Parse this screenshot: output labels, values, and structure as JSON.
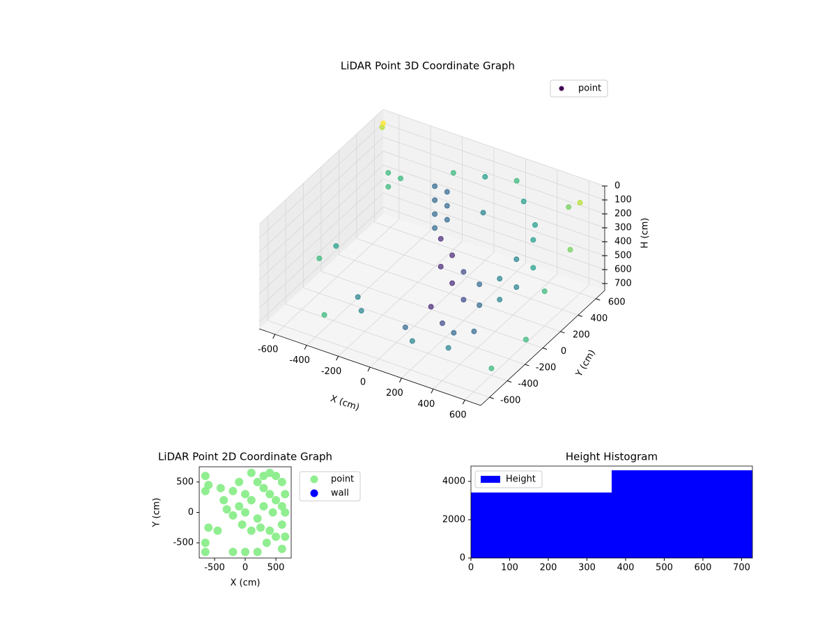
{
  "chart_data": [
    {
      "type": "scatter3d",
      "title": "LiDAR Point 3D Coordinate Graph",
      "xlabel": "X (cm)",
      "ylabel": "Y (cm)",
      "zlabel": "H (cm)",
      "xlim": [
        -700,
        700
      ],
      "ylim": [
        -700,
        700
      ],
      "zlim": [
        0,
        750
      ],
      "z_inverted": true,
      "xticks": [
        -600,
        -400,
        -200,
        0,
        200,
        400,
        600
      ],
      "yticks": [
        -600,
        -400,
        -200,
        0,
        200,
        400,
        600
      ],
      "zticks": [
        0,
        100,
        200,
        300,
        400,
        500,
        600,
        700
      ],
      "grid": true,
      "colormap": "viridis",
      "legend": "upper right",
      "series": [
        {
          "name": "point",
          "color": "#440154",
          "x": [
            -150,
            -150,
            -150,
            -150,
            -100,
            -100,
            -100,
            -500,
            -500,
            -450,
            0,
            100,
            200,
            300,
            400,
            450,
            500,
            0,
            100,
            200,
            300,
            400,
            450,
            500,
            50,
            150,
            250,
            350,
            0,
            100,
            300,
            -600,
            -550,
            -300,
            -250,
            -400,
            600,
            500,
            650,
            600,
            650,
            600,
            -650,
            -700,
            200,
            300,
            -200,
            100,
            0,
            400
          ],
          "y": [
            300,
            300,
            300,
            300,
            350,
            350,
            350,
            400,
            400,
            450,
            100,
            50,
            0,
            0,
            50,
            150,
            250,
            100,
            50,
            0,
            0,
            50,
            150,
            250,
            -100,
            -150,
            -200,
            -150,
            -300,
            -400,
            -350,
            -200,
            -100,
            -300,
            -350,
            -500,
            600,
            650,
            400,
            200,
            -100,
            -400,
            600,
            700,
            600,
            500,
            600,
            400,
            600,
            450
          ],
          "z": [
            100,
            200,
            300,
            400,
            150,
            250,
            350,
            200,
            300,
            250,
            300,
            350,
            400,
            450,
            400,
            300,
            200,
            500,
            550,
            600,
            600,
            550,
            500,
            400,
            650,
            700,
            700,
            680,
            700,
            700,
            700,
            500,
            450,
            600,
            650,
            650,
            100,
            200,
            300,
            500,
            650,
            700,
            50,
            100,
            100,
            150,
            200,
            250,
            150,
            250
          ]
        }
      ]
    },
    {
      "type": "scatter",
      "title": "LiDAR Point 2D Coordinate Graph",
      "xlabel": "X (cm)",
      "ylabel": "Y (cm)",
      "xlim": [
        -750,
        750
      ],
      "ylim": [
        -750,
        750
      ],
      "xticks": [
        -500,
        0,
        500
      ],
      "yticks": [
        -500,
        0,
        500
      ],
      "legend": "outside upper right",
      "series": [
        {
          "name": "point",
          "color": "#90ee90",
          "x": [
            -650,
            -600,
            -650,
            -400,
            -350,
            -300,
            -600,
            -650,
            -650,
            -200,
            0,
            200,
            100,
            200,
            300,
            400,
            500,
            600,
            650,
            600,
            500,
            600,
            350,
            400,
            0,
            100,
            -100,
            -200,
            300,
            500,
            600,
            650,
            450,
            300,
            200,
            100,
            -50,
            -200,
            250,
            -450,
            650,
            400,
            -100,
            0
          ],
          "y": [
            600,
            450,
            350,
            400,
            200,
            50,
            -250,
            -500,
            -650,
            -650,
            -650,
            -650,
            650,
            500,
            400,
            300,
            200,
            100,
            0,
            -200,
            -400,
            -600,
            -500,
            -300,
            300,
            200,
            500,
            350,
            600,
            600,
            500,
            300,
            0,
            100,
            -100,
            -300,
            -200,
            -50,
            -250,
            -300,
            -400,
            650,
            100,
            0
          ]
        },
        {
          "name": "wall",
          "color": "#0000ff",
          "x": [],
          "y": []
        }
      ]
    },
    {
      "type": "histogram",
      "title": "Height Histogram",
      "xlim": [
        0,
        728
      ],
      "ylim": [
        0,
        4800
      ],
      "xticks": [
        0,
        100,
        200,
        300,
        400,
        500,
        600,
        700
      ],
      "yticks": [
        0,
        2000,
        4000
      ],
      "legend": "upper left",
      "series": [
        {
          "name": "Height",
          "color": "#0000ff",
          "bins": [
            0,
            364,
            728
          ],
          "values": [
            3420,
            4580
          ]
        }
      ]
    }
  ]
}
